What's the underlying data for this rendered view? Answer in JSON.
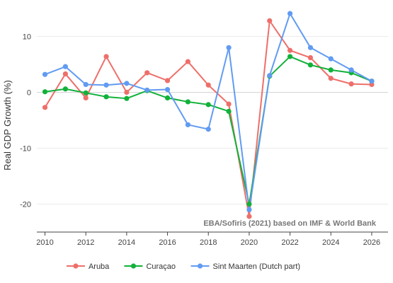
{
  "chart_data": {
    "type": "line",
    "title": "",
    "xlabel": "",
    "ylabel": "Real GDP Growth (%)",
    "xlim": [
      2009.6,
      2026.8
    ],
    "ylim": [
      -25,
      15
    ],
    "x_ticks": [
      2010,
      2012,
      2014,
      2016,
      2018,
      2020,
      2022,
      2024,
      2026
    ],
    "y_ticks": [
      -20,
      -10,
      0,
      10
    ],
    "grid": true,
    "legend_position": "bottom",
    "annotation": "EBA/Sofiris (2021) based on IMF & World Bank",
    "x": [
      2010,
      2011,
      2012,
      2013,
      2014,
      2015,
      2016,
      2017,
      2018,
      2019,
      2020,
      2021,
      2022,
      2023,
      2024,
      2025,
      2026
    ],
    "series": [
      {
        "name": "Aruba",
        "color": "#ee6f6a",
        "values": [
          -2.7,
          3.3,
          -1.0,
          6.4,
          0.0,
          3.5,
          2.1,
          5.5,
          1.3,
          -2.1,
          -22.2,
          12.8,
          7.5,
          6.2,
          2.5,
          1.5,
          1.4
        ]
      },
      {
        "name": "Curaçao",
        "color": "#11b13a",
        "values": [
          0.1,
          0.6,
          -0.1,
          -0.8,
          -1.1,
          0.3,
          -1.0,
          -1.7,
          -2.2,
          -3.4,
          -20.0,
          2.9,
          6.4,
          4.9,
          4.0,
          3.5,
          2.0
        ]
      },
      {
        "name": "Sint Maarten (Dutch part)",
        "color": "#619bf2",
        "values": [
          3.2,
          4.6,
          1.4,
          1.3,
          1.6,
          0.4,
          0.5,
          -5.8,
          -6.6,
          8.0,
          -21.0,
          3.0,
          14.1,
          8.0,
          6.0,
          4.0,
          2.0
        ]
      }
    ]
  }
}
